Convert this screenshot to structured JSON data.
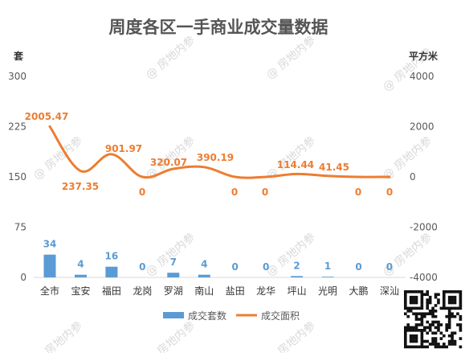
{
  "watermark": "@ 房地内参",
  "chart_data": {
    "type": "bar+line",
    "title": "周度各区一手商业成交量数据",
    "left_axis_label": "套",
    "right_axis_label": "平方米",
    "categories": [
      "全市",
      "宝安",
      "福田",
      "龙岗",
      "罗湖",
      "南山",
      "盐田",
      "龙华",
      "坪山",
      "光明",
      "大鹏",
      "深汕"
    ],
    "left_ylim": [
      0,
      300
    ],
    "left_ticks": [
      0,
      75,
      150,
      225,
      300
    ],
    "right_ylim": [
      -4000,
      4000
    ],
    "right_ticks": [
      -4000,
      -2000,
      0,
      2000,
      4000
    ],
    "series": [
      {
        "name": "成交套数",
        "kind": "bar",
        "axis": "left",
        "color": "#5b9bd5",
        "values": [
          34,
          4,
          16,
          0,
          7,
          4,
          0,
          0,
          2,
          1,
          0,
          0
        ],
        "labels": [
          "34",
          "4",
          "16",
          "0",
          "7",
          "4",
          "0",
          "0",
          "2",
          "1",
          "0",
          "0"
        ]
      },
      {
        "name": "成交面积",
        "kind": "line",
        "axis": "right",
        "color": "#ed7d31",
        "values": [
          2005.47,
          237.35,
          901.97,
          0,
          320.07,
          390.19,
          0,
          0,
          114.44,
          41.45,
          0,
          0
        ],
        "labels": [
          "2005.47",
          "237.35",
          "901.97",
          "0",
          "320.07",
          "390.19",
          "0",
          "0",
          "114.44",
          "41.45",
          "0",
          "0"
        ]
      }
    ],
    "legend_position": "bottom",
    "grid": false
  }
}
